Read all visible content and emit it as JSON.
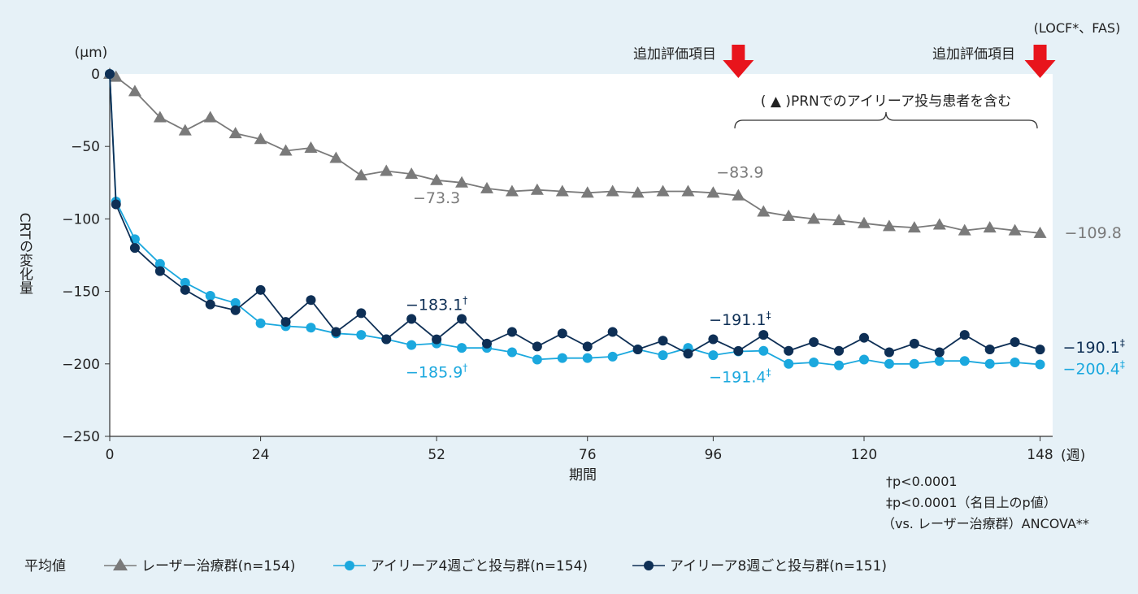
{
  "chart_data": {
    "type": "line",
    "xlabel": "期間",
    "x_unit": "(週)",
    "ylabel": "CRTの変化量",
    "y_unit": "(μm)",
    "method_note": "(LOCF*、FAS)",
    "xlim": [
      0,
      150
    ],
    "ylim": [
      -250,
      0
    ],
    "x_ticks": [
      0,
      24,
      52,
      76,
      96,
      120,
      148
    ],
    "y_ticks": [
      0,
      -50,
      -100,
      -150,
      -200,
      -250
    ],
    "colors": {
      "laser": "#7a7a7a",
      "q4": "#1ba8de",
      "q8": "#0e2f55",
      "arrow": "#e8141c"
    },
    "series": [
      {
        "name": "レーザー治療群(n=154)",
        "key": "laser",
        "marker": "triangle",
        "x": [
          0,
          1,
          4,
          8,
          12,
          16,
          20,
          24,
          28,
          32,
          36,
          40,
          44,
          48,
          52,
          56,
          60,
          64,
          68,
          72,
          76,
          80,
          84,
          88,
          92,
          96,
          100,
          104,
          108,
          112,
          116,
          120,
          124,
          128,
          132,
          136,
          140,
          144,
          148
        ],
        "y": [
          0,
          -2,
          -12,
          -30,
          -39,
          -30,
          -41,
          -45,
          -53,
          -51,
          -58,
          -70,
          -67,
          -69,
          -73.3,
          -75,
          -79,
          -81,
          -80,
          -81,
          -82,
          -81,
          -82,
          -81,
          -81,
          -82,
          -83.9,
          -95,
          -98,
          -100,
          -101,
          -103,
          -105,
          -106,
          -104,
          -108,
          -106,
          -108,
          -109.8
        ]
      },
      {
        "name": "アイリーア4週ごと投与群(n=154)",
        "key": "q4",
        "marker": "circle",
        "x": [
          0,
          1,
          4,
          8,
          12,
          16,
          20,
          24,
          28,
          32,
          36,
          40,
          44,
          48,
          52,
          56,
          60,
          64,
          68,
          72,
          76,
          80,
          84,
          88,
          92,
          96,
          100,
          104,
          108,
          112,
          116,
          120,
          124,
          128,
          132,
          136,
          140,
          144,
          148
        ],
        "y": [
          0,
          -88,
          -114,
          -131,
          -144,
          -153,
          -158,
          -172,
          -174,
          -175,
          -179,
          -180,
          -183,
          -187,
          -185.9,
          -189,
          -189,
          -192,
          -197,
          -196,
          -196,
          -195,
          -190,
          -194,
          -189,
          -194,
          -191.4,
          -191,
          -200,
          -199,
          -201,
          -197,
          -200,
          -200,
          -198,
          -198,
          -200,
          -199,
          -200.4
        ]
      },
      {
        "name": "アイリーア8週ごと投与群(n=151)",
        "key": "q8",
        "marker": "circle",
        "x": [
          0,
          1,
          4,
          8,
          12,
          16,
          20,
          24,
          28,
          32,
          36,
          40,
          44,
          48,
          52,
          56,
          60,
          64,
          68,
          72,
          76,
          80,
          84,
          88,
          92,
          96,
          100,
          104,
          108,
          112,
          116,
          120,
          124,
          128,
          132,
          136,
          140,
          144,
          148
        ],
        "y": [
          0,
          -90,
          -120,
          -136,
          -149,
          -159,
          -163,
          -149,
          -171,
          -156,
          -178,
          -165,
          -183,
          -169,
          -183.1,
          -169,
          -186,
          -178,
          -188,
          -179,
          -188,
          -178,
          -190,
          -184,
          -193,
          -183,
          -191.1,
          -180,
          -191,
          -185,
          -191,
          -182,
          -192,
          -186,
          -192,
          -180,
          -190,
          -185,
          -190.1
        ]
      }
    ],
    "value_labels": [
      {
        "key": "laser",
        "text": "−73.3",
        "x": 52,
        "y": -73.3
      },
      {
        "key": "laser",
        "text": "−83.9",
        "x": 100,
        "y": -83.9
      },
      {
        "key": "laser",
        "text": "−109.8",
        "x": 148,
        "y": -109.8
      },
      {
        "key": "q8",
        "text": "−183.1",
        "sup": "†",
        "x": 52,
        "y": -183.1
      },
      {
        "key": "q4",
        "text": "−185.9",
        "sup": "†",
        "x": 52,
        "y": -185.9
      },
      {
        "key": "q8",
        "text": "−191.1",
        "sup": "‡",
        "x": 100,
        "y": -191.1
      },
      {
        "key": "q4",
        "text": "−191.4",
        "sup": "‡",
        "x": 100,
        "y": -191.4
      },
      {
        "key": "q8",
        "text": "−190.1",
        "sup": "‡",
        "x": 148,
        "y": -190.1
      },
      {
        "key": "q4",
        "text": "−200.4",
        "sup": "‡",
        "x": 148,
        "y": -200.4
      }
    ],
    "annotations": {
      "additional_eval_label": "追加評価項目",
      "additional_eval_x": [
        100,
        148
      ],
      "prn_note": "( ▲ )PRNでのアイリーア投与患者を含む"
    },
    "footnotes": [
      "†p<0.0001",
      "‡p<0.0001（名目上のp値）",
      "（vs. レーザー治療群）ANCOVA**"
    ],
    "legend": {
      "title": "平均値",
      "placement": "bottom-left"
    }
  }
}
